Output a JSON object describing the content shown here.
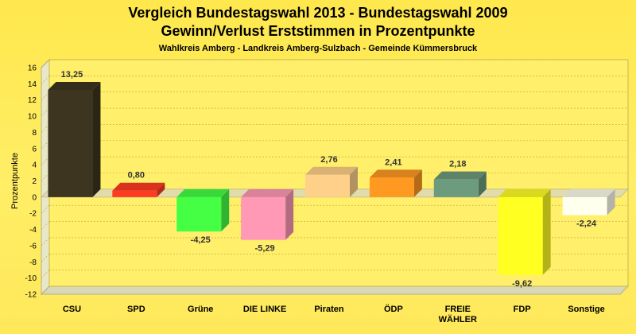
{
  "header": {
    "title_line1": "Vergleich Bundestagswahl 2013 - Bundestagswahl 2009",
    "title_line2": "Gewinn/Verlust Erststimmen in Prozentpunkte",
    "subtitle": "Wahlkreis Amberg - Landkreis Amberg-Sulzbach - Gemeinde Kümmersbruck"
  },
  "chart_data": {
    "type": "bar",
    "ylabel": "Prozentpunkte",
    "ylim": [
      -12,
      16
    ],
    "yticks": [
      16,
      14,
      12,
      10,
      8,
      6,
      4,
      2,
      0,
      -2,
      -4,
      -6,
      -8,
      -10,
      -12
    ],
    "grid": true,
    "categories": [
      "CSU",
      "SPD",
      "Grüne",
      "DIE LINKE",
      "Piraten",
      "ÖDP",
      "FREIE WÄHLER",
      "FDP",
      "Sonstige"
    ],
    "category_lines": [
      [
        "CSU"
      ],
      [
        "SPD"
      ],
      [
        "Grüne"
      ],
      [
        "DIE LINKE"
      ],
      [
        "Piraten"
      ],
      [
        "ÖDP"
      ],
      [
        "FREIE",
        "WÄHLER"
      ],
      [
        "FDP"
      ],
      [
        "Sonstige"
      ]
    ],
    "values": [
      13.25,
      0.8,
      -4.25,
      -5.29,
      2.76,
      2.41,
      2.18,
      -9.62,
      -2.24
    ],
    "value_labels": [
      "13,25",
      "0,80",
      "-4,25",
      "-5,29",
      "2,76",
      "2,41",
      "2,18",
      "-9,62",
      "-2,24"
    ],
    "colors": [
      "#3d3520",
      "#ff3b22",
      "#44ff44",
      "#ff99b5",
      "#ffd08a",
      "#ff9922",
      "#6d9b7d",
      "#ffff22",
      "#ffffee"
    ]
  }
}
